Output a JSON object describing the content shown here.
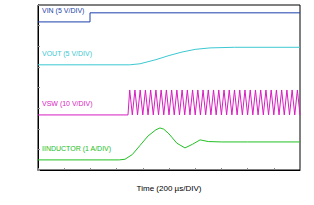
{
  "chart_data": {
    "type": "line",
    "x_label": "Time (200 µs/DIV)",
    "xlim": [
      0,
      2000
    ],
    "xticks": [
      0,
      200,
      400,
      600,
      800,
      1000,
      1200,
      1400,
      1600,
      1800,
      2000
    ],
    "ylim": [
      0,
      8
    ],
    "yticks": [
      0,
      1,
      2,
      3,
      4,
      5,
      6,
      7,
      8
    ],
    "grid": false,
    "tick_labels": false,
    "series": [
      {
        "name": "VIN (5 V/DIV)",
        "color": "#1a3faa",
        "x": [
          0,
          397,
          397,
          2000
        ],
        "values": [
          7.18,
          7.18,
          7.62,
          7.62
        ]
      },
      {
        "name": "VOUT (5 V/DIV)",
        "color": "#3cc8d2",
        "x": [
          0,
          700,
          778,
          900,
          1000,
          1100,
          1200,
          1313,
          1500,
          2000
        ],
        "values": [
          5.1,
          5.1,
          5.15,
          5.35,
          5.55,
          5.72,
          5.85,
          5.92,
          5.95,
          5.95
        ]
      },
      {
        "name": "VSW (10 V/DIV)",
        "color": "#d81cc0",
        "x": [
          0,
          687,
          700,
          720,
          740,
          760,
          780,
          800,
          820,
          840,
          860,
          880,
          900,
          920,
          940,
          960,
          980,
          1000,
          1020,
          1040,
          1060,
          1080,
          1100,
          1120,
          1140,
          1160,
          1180,
          1200,
          1220,
          1240,
          1260,
          1280,
          1300,
          1320,
          1340,
          1360,
          1380,
          1400,
          1420,
          1440,
          1460,
          1480,
          1500,
          1520,
          1540,
          1560,
          1580,
          1600,
          1620,
          1640,
          1660,
          1680,
          1700,
          1720,
          1740,
          1760,
          1780,
          1800,
          1820,
          1840,
          1860,
          1880,
          1900,
          1920,
          1940,
          1960,
          1980,
          2000
        ],
        "values": [
          2.67,
          2.67,
          3.88,
          2.67,
          3.88,
          2.67,
          3.88,
          2.67,
          3.88,
          2.67,
          3.88,
          2.67,
          3.88,
          2.67,
          3.88,
          2.67,
          3.88,
          2.67,
          3.88,
          2.67,
          3.88,
          2.67,
          3.88,
          2.67,
          3.88,
          2.67,
          3.88,
          2.67,
          3.88,
          2.67,
          3.88,
          2.67,
          3.88,
          2.67,
          3.88,
          2.67,
          3.88,
          2.67,
          3.88,
          2.67,
          3.88,
          2.67,
          3.88,
          2.67,
          3.88,
          2.67,
          3.88,
          2.67,
          3.88,
          2.67,
          3.88,
          2.67,
          3.88,
          2.67,
          3.88,
          2.67,
          3.88,
          2.67,
          3.88,
          2.67,
          3.88,
          2.67,
          3.88,
          2.67,
          3.88,
          2.67,
          3.88,
          2.67
        ]
      },
      {
        "name": "IINDUCTOR (1 A/DIV)",
        "color": "#22c022",
        "x": [
          0,
          620,
          664,
          720,
          780,
          840,
          900,
          931,
          960,
          1000,
          1060,
          1122,
          1180,
          1237,
          1300,
          1400,
          1600,
          2000
        ],
        "values": [
          0.49,
          0.49,
          0.52,
          0.75,
          1.2,
          1.65,
          1.95,
          2.04,
          1.98,
          1.75,
          1.3,
          1.07,
          1.25,
          1.46,
          1.38,
          1.36,
          1.36,
          1.36
        ]
      }
    ]
  }
}
